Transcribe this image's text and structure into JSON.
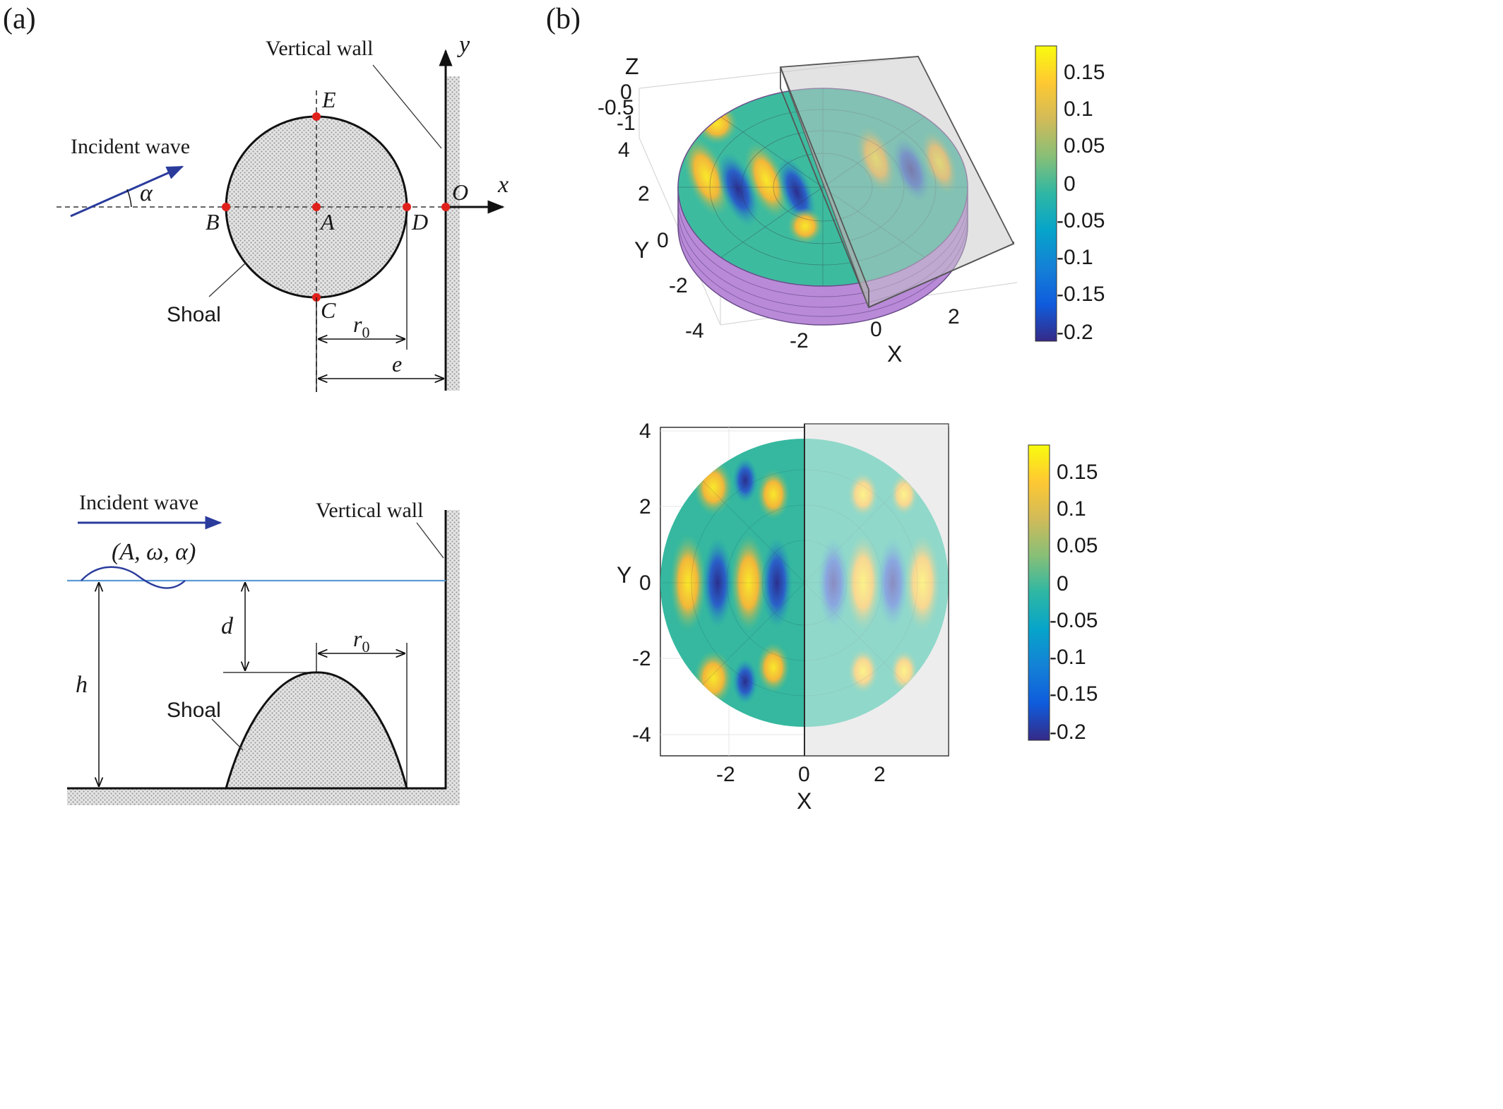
{
  "panels": {
    "a": {
      "label": "(a)"
    },
    "b": {
      "label": "(b)"
    }
  },
  "top_view": {
    "axis_x": "x",
    "axis_y": "y",
    "origin": "O",
    "angle": "α",
    "points": {
      "A": "A",
      "B": "B",
      "C": "C",
      "D": "D",
      "E": "E"
    },
    "labels": {
      "vertical_wall": "Vertical wall",
      "incident_wave": "Incident wave",
      "shoal": "Shoal",
      "r0": "r",
      "r0_sub": "0",
      "e": "e"
    }
  },
  "side_view": {
    "labels": {
      "incident_wave": "Incident wave",
      "vertical_wall": "Vertical wall",
      "wave_params": "(A, ω, α)",
      "d": "d",
      "h": "h",
      "r0": "r",
      "r0_sub": "0",
      "shoal": "Shoal"
    }
  },
  "plot3d": {
    "axis_x": "X",
    "axis_y": "Y",
    "axis_z": "Z",
    "x_ticks": [
      "-2",
      "0",
      "2"
    ],
    "y_ticks": [
      "4",
      "2",
      "0",
      "-2",
      "-4"
    ],
    "z_ticks": [
      "0",
      "-0.5",
      "-1"
    ],
    "colorbar_ticks": [
      "0.15",
      "0.1",
      "0.05",
      "0",
      "-0.05",
      "-0.1",
      "-0.15",
      "-0.2"
    ]
  },
  "plot2d": {
    "axis_x": "X",
    "axis_y": "Y",
    "x_ticks": [
      "-2",
      "0",
      "2"
    ],
    "y_ticks": [
      "4",
      "2",
      "0",
      "-2",
      "-4"
    ],
    "colorbar_ticks": [
      "0.15",
      "0.1",
      "0.05",
      "0",
      "-0.05",
      "-0.1",
      "-0.15",
      "-0.2"
    ]
  },
  "colors": {
    "wave_arrow": "#2a3b9c",
    "point": "#e0201b",
    "water": "#5b9bd5",
    "parula": [
      "#352a87",
      "#0f5cdd",
      "#1481d6",
      "#06a4ca",
      "#2eb7a4",
      "#87bf77",
      "#d1bb59",
      "#fec832",
      "#f9fb0e"
    ]
  }
}
